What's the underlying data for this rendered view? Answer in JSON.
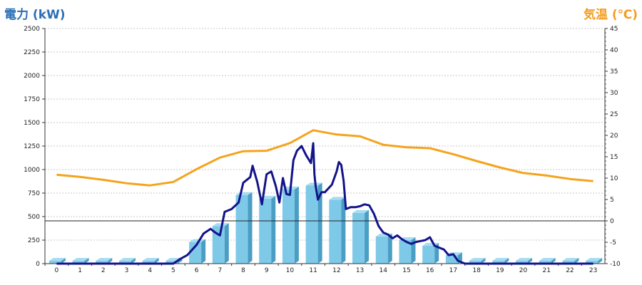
{
  "left_title": "電力 (kW)",
  "right_title": "気温 (℃)",
  "chart_data": {
    "type": "bar",
    "categories": [
      "0",
      "1",
      "2",
      "3",
      "4",
      "5",
      "6",
      "7",
      "8",
      "9",
      "10",
      "11",
      "12",
      "13",
      "14",
      "15",
      "16",
      "17",
      "18",
      "19",
      "20",
      "21",
      "22",
      "23"
    ],
    "y_left": {
      "ylim": [
        0,
        2500
      ],
      "ticks": [
        "0",
        "250",
        "500",
        "750",
        "1000",
        "1250",
        "1500",
        "1750",
        "2000",
        "2250",
        "2500"
      ]
    },
    "y_right": {
      "ylim": [
        -10,
        45
      ],
      "ticks": [
        "-10",
        "-5",
        "0",
        "5",
        "10",
        "15",
        "20",
        "25",
        "30",
        "35",
        "40",
        "45"
      ]
    },
    "grid": true,
    "colors": {
      "bar": "#7fc9e8",
      "bar_side": "#4a9ec4",
      "power_line": "#13138a",
      "temp_line": "#f5a31c",
      "title_left": "#2b6fb6",
      "title_right": "#f39c1f"
    },
    "series": [
      {
        "axis": "left",
        "type": "bar",
        "values": [
          30,
          30,
          30,
          30,
          30,
          30,
          230,
          400,
          730,
          690,
          790,
          830,
          680,
          540,
          290,
          250,
          190,
          90,
          30,
          30,
          30,
          30,
          30,
          30
        ]
      },
      {
        "axis": "left",
        "type": "line",
        "x": [
          5,
          5.3,
          5.6,
          6,
          6.3,
          6.6,
          6.8,
          7,
          7.2,
          7.5,
          7.8,
          8,
          8.2,
          8.3,
          8.4,
          8.6,
          8.8,
          9,
          9.2,
          9.4,
          9.55,
          9.7,
          9.85,
          10,
          10.15,
          10.3,
          10.5,
          10.7,
          10.9,
          11,
          11.05,
          11.1,
          11.2,
          11.35,
          11.5,
          11.8,
          11.9,
          12,
          12.1,
          12.2,
          12.3,
          12.4,
          12.6,
          12.8,
          13,
          13.2,
          13.4,
          13.6,
          13.8,
          14,
          14.2,
          14.4,
          14.6,
          14.8,
          15,
          15.2,
          15.4,
          15.6,
          15.8,
          16,
          16.2,
          16.4,
          16.6,
          16.8,
          17,
          17.2,
          17.5
        ],
        "values": [
          0,
          50,
          90,
          200,
          320,
          370,
          330,
          300,
          550,
          580,
          650,
          860,
          900,
          920,
          1040,
          870,
          630,
          950,
          980,
          820,
          650,
          910,
          740,
          730,
          1100,
          1200,
          1250,
          1150,
          1070,
          1280,
          950,
          830,
          680,
          760,
          760,
          840,
          910,
          980,
          1080,
          1050,
          880,
          580,
          600,
          600,
          610,
          630,
          620,
          530,
          400,
          330,
          310,
          270,
          300,
          260,
          230,
          210,
          230,
          240,
          250,
          280,
          190,
          170,
          150,
          90,
          100,
          30,
          0
        ]
      },
      {
        "axis": "right",
        "type": "line",
        "values": [
          10.8,
          10.3,
          9.6,
          8.8,
          8.3,
          9.1,
          12.1,
          14.8,
          16.3,
          16.4,
          18.2,
          21.2,
          20.2,
          19.8,
          17.8,
          17.2,
          17.0,
          15.6,
          14.0,
          12.5,
          11.2,
          10.6,
          9.8,
          9.3
        ]
      }
    ]
  }
}
